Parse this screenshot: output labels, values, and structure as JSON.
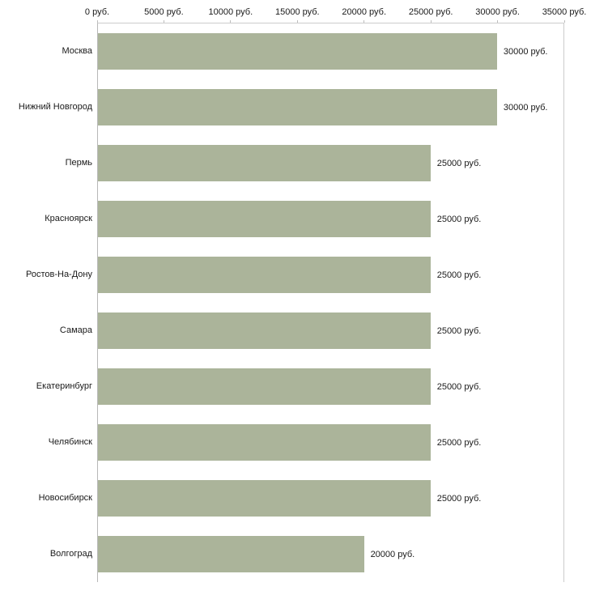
{
  "chart_data": {
    "type": "bar",
    "orientation": "horizontal",
    "title": "",
    "xlabel": "",
    "ylabel": "",
    "grid": false,
    "legend": false,
    "bar_color": "#abb49a",
    "xlim": [
      0,
      35000
    ],
    "x_ticks": [
      0,
      5000,
      10000,
      15000,
      20000,
      25000,
      30000,
      35000
    ],
    "x_tick_labels": [
      "0 руб.",
      "5000 руб.",
      "10000 руб.",
      "15000 руб.",
      "20000 руб.",
      "25000 руб.",
      "30000 руб.",
      "35000 руб."
    ],
    "categories": [
      "Москва",
      "Нижний Новгород",
      "Пермь",
      "Красноярск",
      "Ростов-На-Дону",
      "Самара",
      "Екатеринбург",
      "Челябинск",
      "Новосибирск",
      "Волгоград"
    ],
    "values": [
      30000,
      30000,
      25000,
      25000,
      25000,
      25000,
      25000,
      25000,
      25000,
      20000
    ],
    "value_labels": [
      "30000 руб.",
      "30000 руб.",
      "25000 руб.",
      "25000 руб.",
      "25000 руб.",
      "25000 руб.",
      "25000 руб.",
      "25000 руб.",
      "25000 руб.",
      "20000 руб."
    ]
  }
}
